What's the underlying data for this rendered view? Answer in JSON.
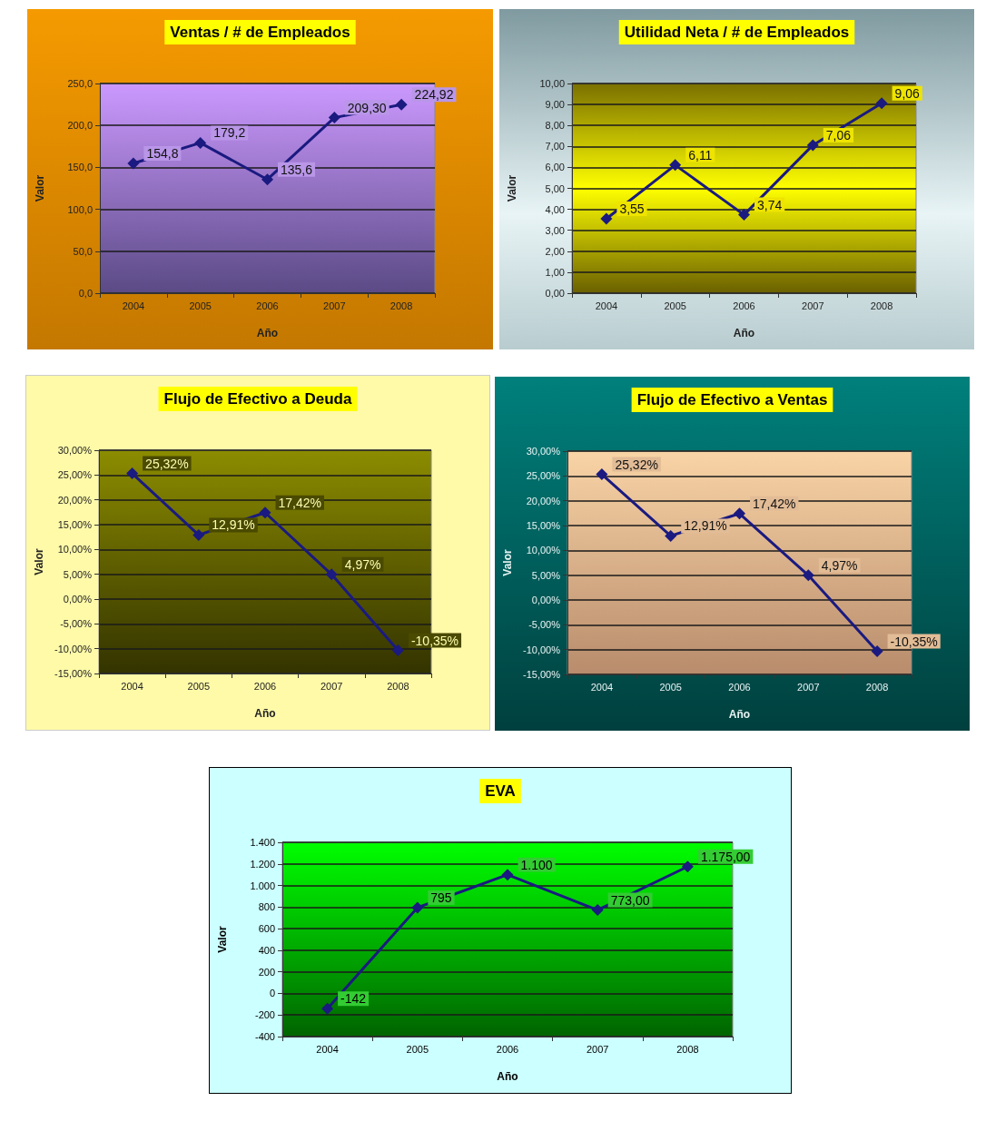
{
  "chart_data": [
    {
      "type": "line",
      "title": "Ventas / # de Empleados",
      "xlabel": "Año",
      "ylabel": "Valor",
      "categories": [
        "2004",
        "2005",
        "2006",
        "2007",
        "2008"
      ],
      "color": "#1a1a80",
      "marker": "diamond",
      "grid": "y",
      "values": [
        154.8,
        179.2,
        135.6,
        209.3,
        224.92
      ],
      "value_labels": [
        "154,8",
        "179,2",
        "135,6",
        "209,30",
        "224,92"
      ],
      "ylim": [
        0,
        250
      ],
      "yticks": [
        {
          "value": 0,
          "label": "0,0"
        },
        {
          "value": 50,
          "label": "50,0"
        },
        {
          "value": 100,
          "label": "100,0"
        },
        {
          "value": 150,
          "label": "150,0"
        },
        {
          "value": 200,
          "label": "200,0"
        },
        {
          "value": 250,
          "label": "250,0"
        }
      ]
    },
    {
      "type": "line",
      "title": "Utilidad Neta / # de Empleados",
      "xlabel": "Año",
      "ylabel": "Valor",
      "categories": [
        "2004",
        "2005",
        "2006",
        "2007",
        "2008"
      ],
      "color": "#1a1a80",
      "marker": "diamond",
      "grid": "y",
      "values": [
        3.55,
        6.11,
        3.74,
        7.06,
        9.06
      ],
      "value_labels": [
        "3,55",
        "6,11",
        "3,74",
        "7,06",
        "9,06"
      ],
      "ylim": [
        0,
        10
      ],
      "yticks": [
        {
          "value": 0,
          "label": "0,00"
        },
        {
          "value": 1,
          "label": "1,00"
        },
        {
          "value": 2,
          "label": "2,00"
        },
        {
          "value": 3,
          "label": "3,00"
        },
        {
          "value": 4,
          "label": "4,00"
        },
        {
          "value": 5,
          "label": "5,00"
        },
        {
          "value": 6,
          "label": "6,00"
        },
        {
          "value": 7,
          "label": "7,00"
        },
        {
          "value": 8,
          "label": "8,00"
        },
        {
          "value": 9,
          "label": "9,00"
        },
        {
          "value": 10,
          "label": "10,00"
        }
      ]
    },
    {
      "type": "line",
      "title": "Flujo de Efectivo a Deuda",
      "xlabel": "Año",
      "ylabel": "Valor",
      "categories": [
        "2004",
        "2005",
        "2006",
        "2007",
        "2008"
      ],
      "color": "#1a1a80",
      "marker": "diamond",
      "grid": "y",
      "values": [
        25.32,
        12.91,
        17.42,
        4.97,
        -10.35
      ],
      "value_labels": [
        "25,32%",
        "12,91%",
        "17,42%",
        "4,97%",
        "-10,35%"
      ],
      "ylim": [
        -15,
        30
      ],
      "yticks": [
        {
          "value": -15,
          "label": "-15,00%"
        },
        {
          "value": -10,
          "label": "-10,00%"
        },
        {
          "value": -5,
          "label": "-5,00%"
        },
        {
          "value": 0,
          "label": "0,00%"
        },
        {
          "value": 5,
          "label": "5,00%"
        },
        {
          "value": 10,
          "label": "10,00%"
        },
        {
          "value": 15,
          "label": "15,00%"
        },
        {
          "value": 20,
          "label": "20,00%"
        },
        {
          "value": 25,
          "label": "25,00%"
        },
        {
          "value": 30,
          "label": "30,00%"
        }
      ]
    },
    {
      "type": "line",
      "title": "Flujo de Efectivo a Ventas",
      "xlabel": "Año",
      "ylabel": "Valor",
      "categories": [
        "2004",
        "2005",
        "2006",
        "2007",
        "2008"
      ],
      "color": "#1a1a80",
      "marker": "diamond",
      "grid": "y",
      "values": [
        25.32,
        12.91,
        17.42,
        4.97,
        -10.35
      ],
      "value_labels": [
        "25,32%",
        "12,91%",
        "17,42%",
        "4,97%",
        "-10,35%"
      ],
      "ylim": [
        -15,
        30
      ],
      "yticks": [
        {
          "value": -15,
          "label": "-15,00%"
        },
        {
          "value": -10,
          "label": "-10,00%"
        },
        {
          "value": -5,
          "label": "-5,00%"
        },
        {
          "value": 0,
          "label": "0,00%"
        },
        {
          "value": 5,
          "label": "5,00%"
        },
        {
          "value": 10,
          "label": "10,00%"
        },
        {
          "value": 15,
          "label": "15,00%"
        },
        {
          "value": 20,
          "label": "20,00%"
        },
        {
          "value": 25,
          "label": "25,00%"
        },
        {
          "value": 30,
          "label": "30,00%"
        }
      ]
    },
    {
      "type": "line",
      "title": "EVA",
      "xlabel": "Año",
      "ylabel": "Valor",
      "categories": [
        "2004",
        "2005",
        "2006",
        "2007",
        "2008"
      ],
      "color": "#1a1a80",
      "marker": "diamond",
      "grid": "y",
      "values": [
        -142,
        795,
        1100,
        773,
        1175
      ],
      "value_labels": [
        "-142",
        "795",
        "1.100",
        "773,00",
        "1.175,00"
      ],
      "ylim": [
        -400,
        1400
      ],
      "yticks": [
        {
          "value": -400,
          "label": "-400"
        },
        {
          "value": -200,
          "label": "-200"
        },
        {
          "value": 0,
          "label": "0"
        },
        {
          "value": 200,
          "label": "200"
        },
        {
          "value": 400,
          "label": "400"
        },
        {
          "value": 600,
          "label": "600"
        },
        {
          "value": 800,
          "label": "800"
        },
        {
          "value": 1000,
          "label": "1.000"
        },
        {
          "value": 1200,
          "label": "1.200"
        },
        {
          "value": 1400,
          "label": "1.400"
        }
      ]
    }
  ]
}
